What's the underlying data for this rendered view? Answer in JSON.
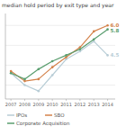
{
  "chart_data": {
    "type": "line",
    "title": "median hold period by exit type and year",
    "x": [
      2007,
      2008,
      2009,
      2010,
      2011,
      2012,
      2013,
      2014
    ],
    "series": [
      {
        "name": "IPOs",
        "color": "#b8cdd6",
        "values": [
          3.6,
          3.0,
          2.7,
          3.5,
          4.3,
          4.7,
          5.2,
          4.5
        ]
      },
      {
        "name": "SBO",
        "color": "#d4824a",
        "values": [
          3.7,
          3.2,
          3.3,
          3.9,
          4.4,
          4.9,
          5.7,
          6.0
        ]
      },
      {
        "name": "Corporate Acquisition",
        "color": "#5a9e6f",
        "values": [
          3.6,
          3.3,
          3.8,
          4.2,
          4.5,
          4.8,
          5.3,
          5.8
        ]
      }
    ],
    "xlim": [
      2006.6,
      2014.55
    ],
    "xticks": [
      2007,
      2008,
      2009,
      2010,
      2011,
      2012,
      2013,
      2014
    ],
    "ylim": [
      2.3,
      6.6
    ],
    "yticks": [
      3,
      4,
      5,
      6
    ],
    "grid": true,
    "legend": "bottom",
    "tick_labels": "x",
    "marker": "circle",
    "annotations": [
      "4.5",
      "6.0",
      "5.8"
    ]
  }
}
